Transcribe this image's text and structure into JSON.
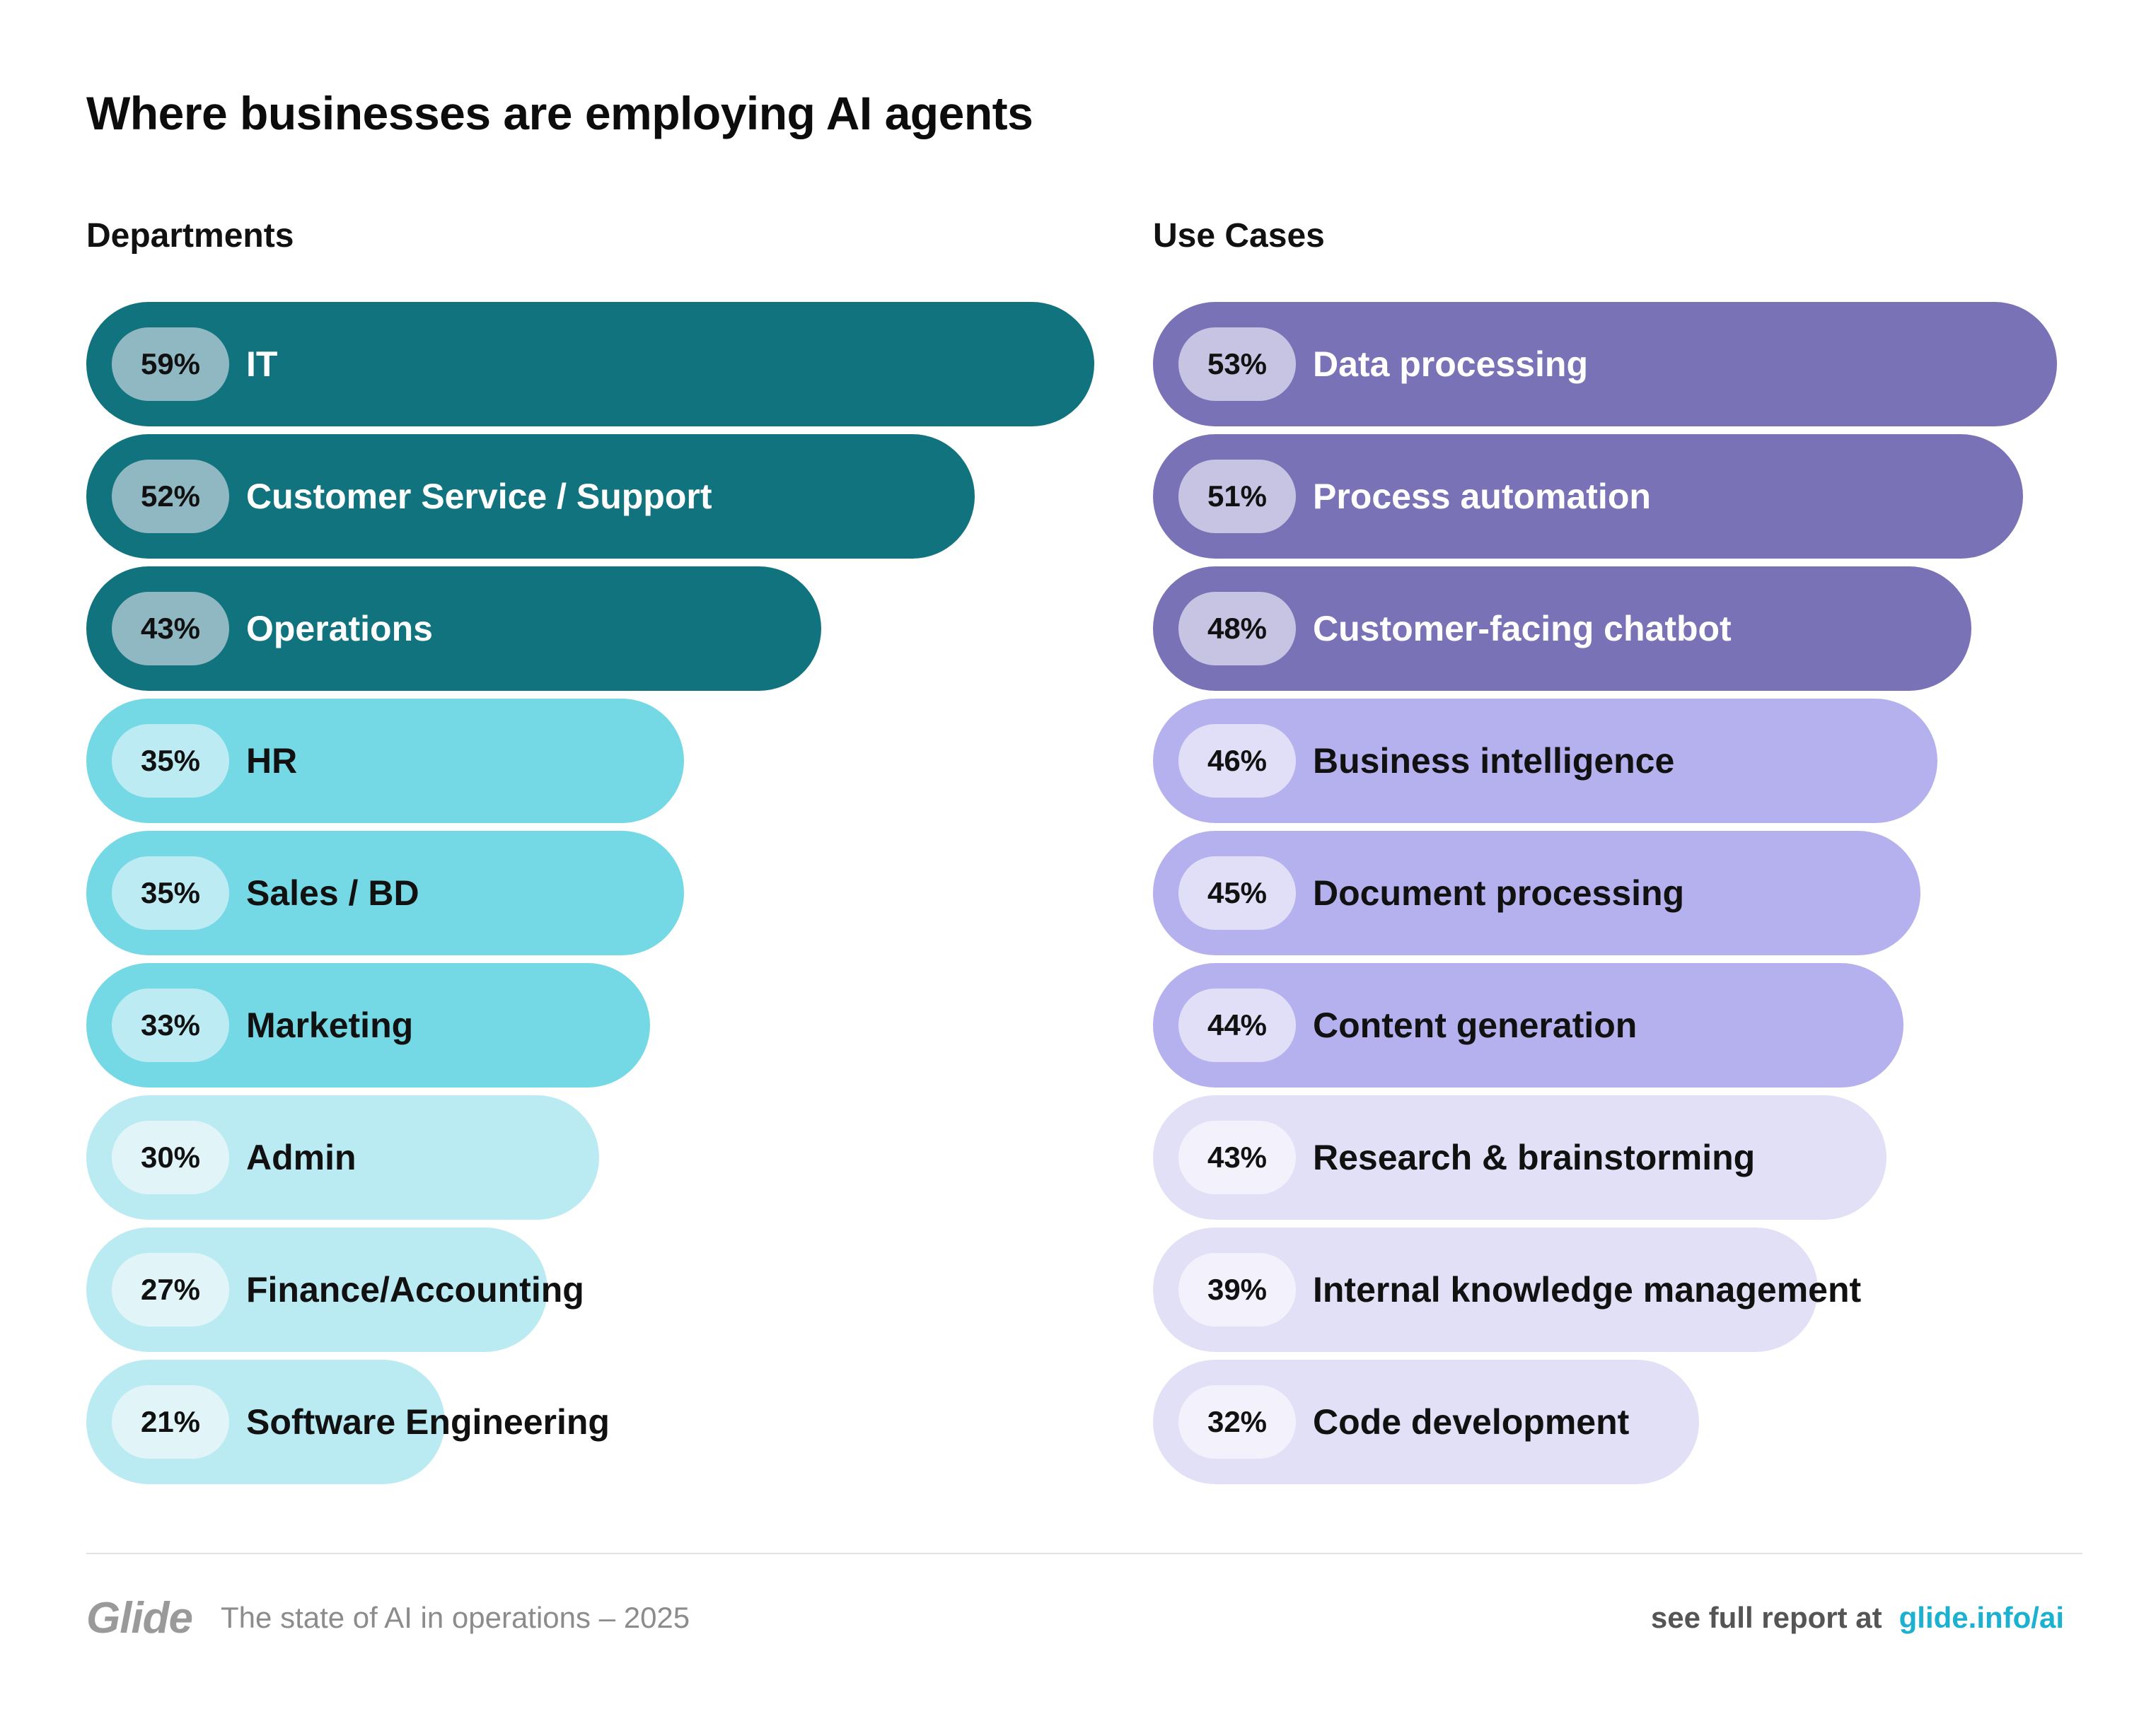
{
  "title": "Where businesses are employing AI agents",
  "panels": {
    "departments": {
      "heading": "Departments"
    },
    "use_cases": {
      "heading": "Use Cases"
    }
  },
  "colors": {
    "dept_dark_bar": "#10737d",
    "dept_dark_pill": "#90b8c2",
    "dept_mid_bar": "#74d9e5",
    "dept_mid_pill": "#bdebf3",
    "dept_light_bar": "#bbebf2",
    "dept_light_pill": "#e1f5f9",
    "use_dark_bar": "#7a72b7",
    "use_dark_pill": "#c7c4e3",
    "use_mid_bar": "#b5b1ef",
    "use_mid_pill": "#e1dff8",
    "use_light_bar": "#e2e0f7",
    "use_light_pill": "#f2f1fc",
    "dark_text": "#ffffff",
    "light_text": "#111111",
    "pill_text": "#111111"
  },
  "chart_data": [
    {
      "type": "bar",
      "orientation": "horizontal",
      "title": "Departments",
      "value_format": "percent",
      "xlim": [
        0,
        59
      ],
      "categories": [
        "IT",
        "Customer Service / Support",
        "Operations",
        "HR",
        "Sales / BD",
        "Marketing",
        "Admin",
        "Finance/Accounting",
        "Software Engineering"
      ],
      "values": [
        59,
        52,
        43,
        35,
        35,
        33,
        30,
        27,
        21
      ],
      "value_labels": [
        "59%",
        "52%",
        "43%",
        "35%",
        "35%",
        "33%",
        "30%",
        "27%",
        "21%"
      ],
      "tiers": [
        "dark",
        "dark",
        "dark",
        "mid",
        "mid",
        "mid",
        "light",
        "light",
        "light"
      ]
    },
    {
      "type": "bar",
      "orientation": "horizontal",
      "title": "Use Cases",
      "value_format": "percent",
      "xlim": [
        0,
        53
      ],
      "categories": [
        "Data processing",
        "Process automation",
        "Customer-facing chatbot",
        "Business intelligence",
        "Document processing",
        "Content generation",
        "Research & brainstorming",
        "Internal knowledge management",
        "Code development"
      ],
      "values": [
        53,
        51,
        48,
        46,
        45,
        44,
        43,
        39,
        32
      ],
      "value_labels": [
        "53%",
        "51%",
        "48%",
        "46%",
        "45%",
        "44%",
        "43%",
        "39%",
        "32%"
      ],
      "tiers": [
        "dark",
        "dark",
        "dark",
        "mid",
        "mid",
        "mid",
        "light",
        "light",
        "light"
      ]
    }
  ],
  "footer": {
    "logo": "Glide",
    "subtitle": "The state of AI in operations – 2025",
    "cta_text": "see full report at",
    "cta_link": "glide.info/ai"
  }
}
